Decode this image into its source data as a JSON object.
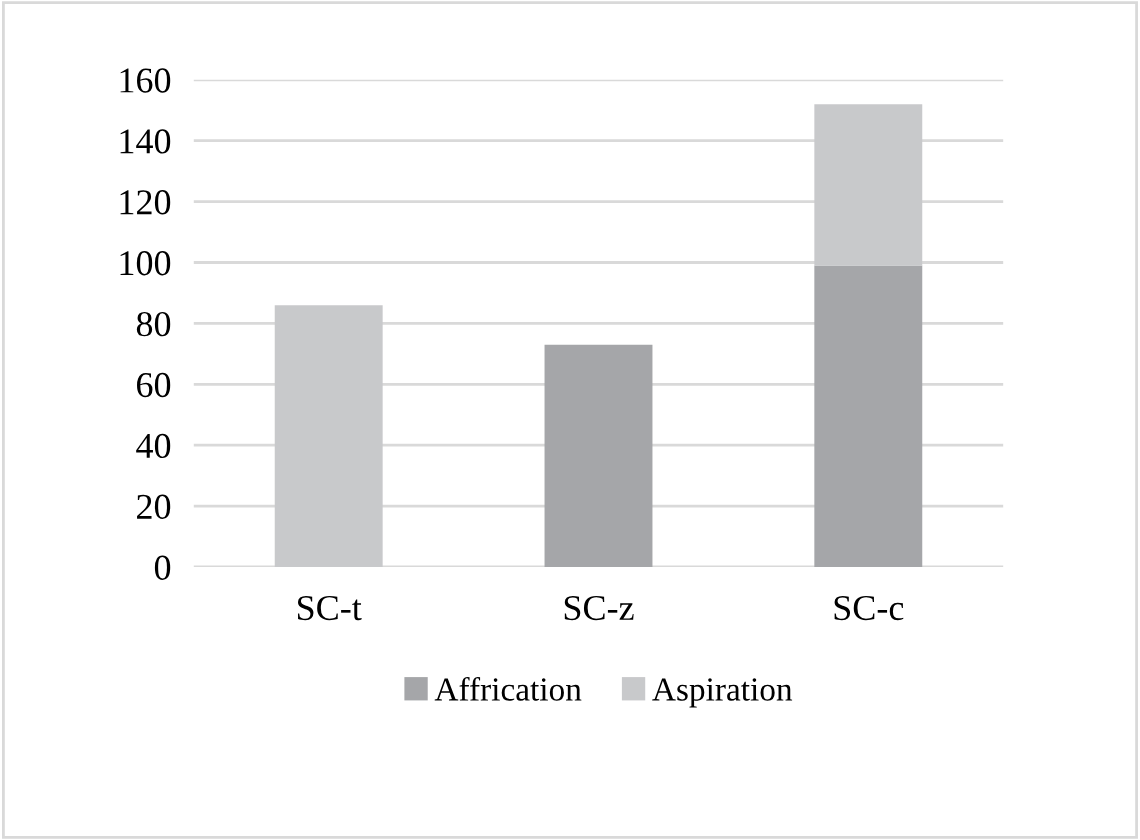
{
  "chart_data": {
    "type": "bar",
    "stacked": true,
    "categories": [
      "SC-t",
      "SC-z",
      "SC-c"
    ],
    "series": [
      {
        "name": "Affrication",
        "color": "#a5a6a9",
        "values": [
          0,
          73,
          99
        ]
      },
      {
        "name": "Aspiration",
        "color": "#c8c9cb",
        "values": [
          86,
          0,
          53
        ]
      }
    ],
    "ylim": [
      0,
      160
    ],
    "yticks": [
      0,
      20,
      40,
      60,
      80,
      100,
      120,
      140,
      160
    ],
    "grid": "y",
    "legend": "bottom"
  }
}
